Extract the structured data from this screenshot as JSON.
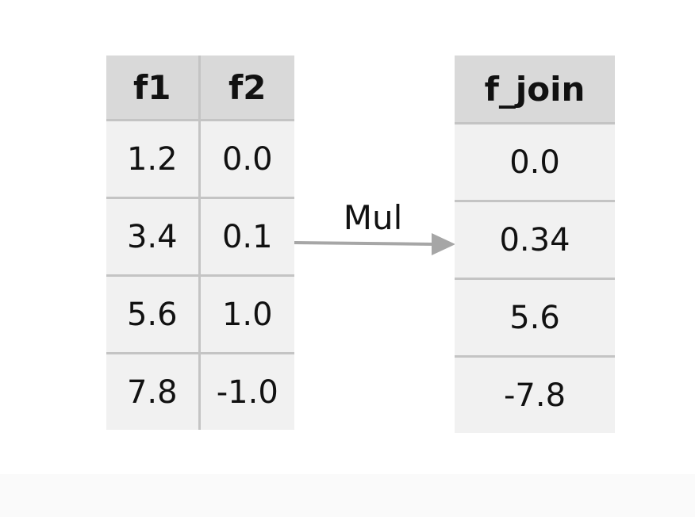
{
  "input_table": {
    "headers": [
      "f1",
      "f2"
    ],
    "rows": [
      [
        "1.2",
        "0.0"
      ],
      [
        "3.4",
        "0.1"
      ],
      [
        "5.6",
        "1.0"
      ],
      [
        "7.8",
        "-1.0"
      ]
    ]
  },
  "operation": {
    "label": "Mul"
  },
  "output_table": {
    "header": "f_join",
    "rows": [
      "0.0",
      "0.34",
      "5.6",
      "-7.8"
    ]
  },
  "colors": {
    "header_bg": "#d9d9d9",
    "cell_bg": "#f1f1f1",
    "grid_line": "#c4c4c4",
    "arrow": "#a6a6a6"
  }
}
